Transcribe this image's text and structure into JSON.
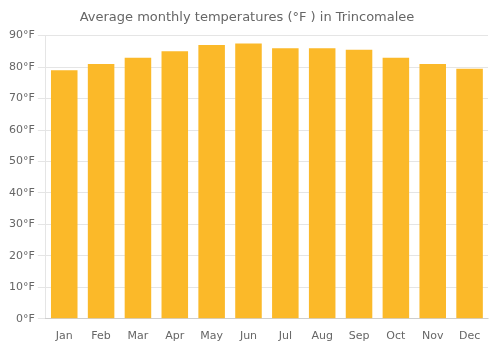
{
  "chart_data": {
    "type": "bar",
    "title": "Average monthly temperatures (°F ) in Trincomalee",
    "categories": [
      "Jan",
      "Feb",
      "Mar",
      "Apr",
      "May",
      "Jun",
      "Jul",
      "Aug",
      "Sep",
      "Oct",
      "Nov",
      "Dec"
    ],
    "values": [
      79,
      81,
      83,
      85,
      87,
      87.5,
      86,
      86,
      85.5,
      83,
      81,
      79.5
    ],
    "color": "#FBB929",
    "ylim": [
      0,
      90
    ],
    "yticks": [
      {
        "value": 0,
        "label": "0°F"
      },
      {
        "value": 10,
        "label": "10°F"
      },
      {
        "value": 20,
        "label": "20°F"
      },
      {
        "value": 30,
        "label": "30°F"
      },
      {
        "value": 40,
        "label": "40°F"
      },
      {
        "value": 50,
        "label": "50°F"
      },
      {
        "value": 60,
        "label": "60°F"
      },
      {
        "value": 70,
        "label": "70°F"
      },
      {
        "value": 80,
        "label": "80°F"
      },
      {
        "value": 90,
        "label": "90°F"
      }
    ],
    "grid": true
  }
}
